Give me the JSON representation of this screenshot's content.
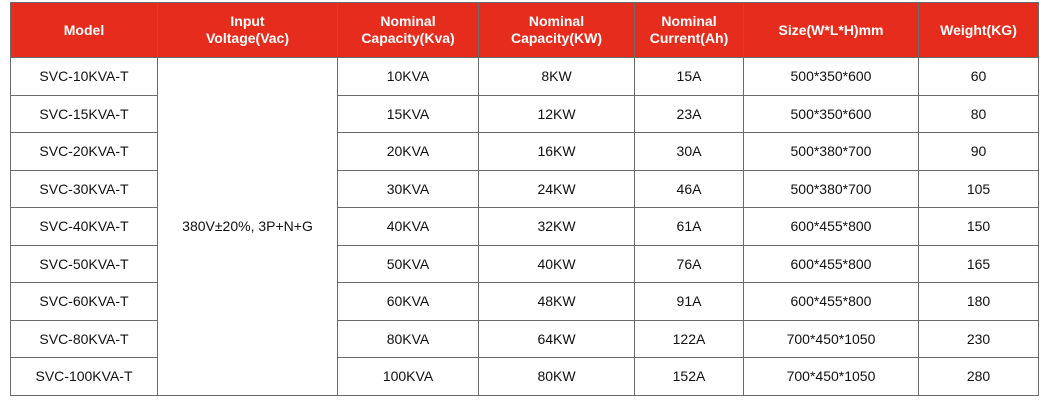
{
  "table": {
    "headers": [
      "Model",
      "Input Voltage(Vac)",
      "Nominal Capacity(Kva)",
      "Nominal Capacity(KW)",
      "Nominal Current(Ah)",
      "Size(W*L*H)mm",
      "Weight(KG)"
    ],
    "input_voltage": "380V±20%, 3P+N+G",
    "rows": [
      [
        "SVC-10KVA-T",
        "10KVA",
        "8KW",
        "15A",
        "500*350*600",
        60
      ],
      [
        "SVC-15KVA-T",
        "15KVA",
        "12KW",
        "23A",
        "500*350*600",
        80
      ],
      [
        "SVC-20KVA-T",
        "20KVA",
        "16KW",
        "30A",
        "500*380*700",
        90
      ],
      [
        "SVC-30KVA-T",
        "30KVA",
        "24KW",
        "46A",
        "500*380*700",
        105
      ],
      [
        "SVC-40KVA-T",
        "40KVA",
        "32KW",
        "61A",
        "600*455*800",
        150
      ],
      [
        "SVC-50KVA-T",
        "50KVA",
        "40KW",
        "76A",
        "600*455*800",
        165
      ],
      [
        "SVC-60KVA-T",
        "60KVA",
        "48KW",
        "91A",
        "600*455*800",
        180
      ],
      [
        "SVC-80KVA-T",
        "80KVA",
        "64KW",
        "122A",
        "700*450*1050",
        230
      ],
      [
        "SVC-100KVA-T",
        "100KVA",
        "80KW",
        "152A",
        "700*450*1050",
        280
      ]
    ]
  }
}
